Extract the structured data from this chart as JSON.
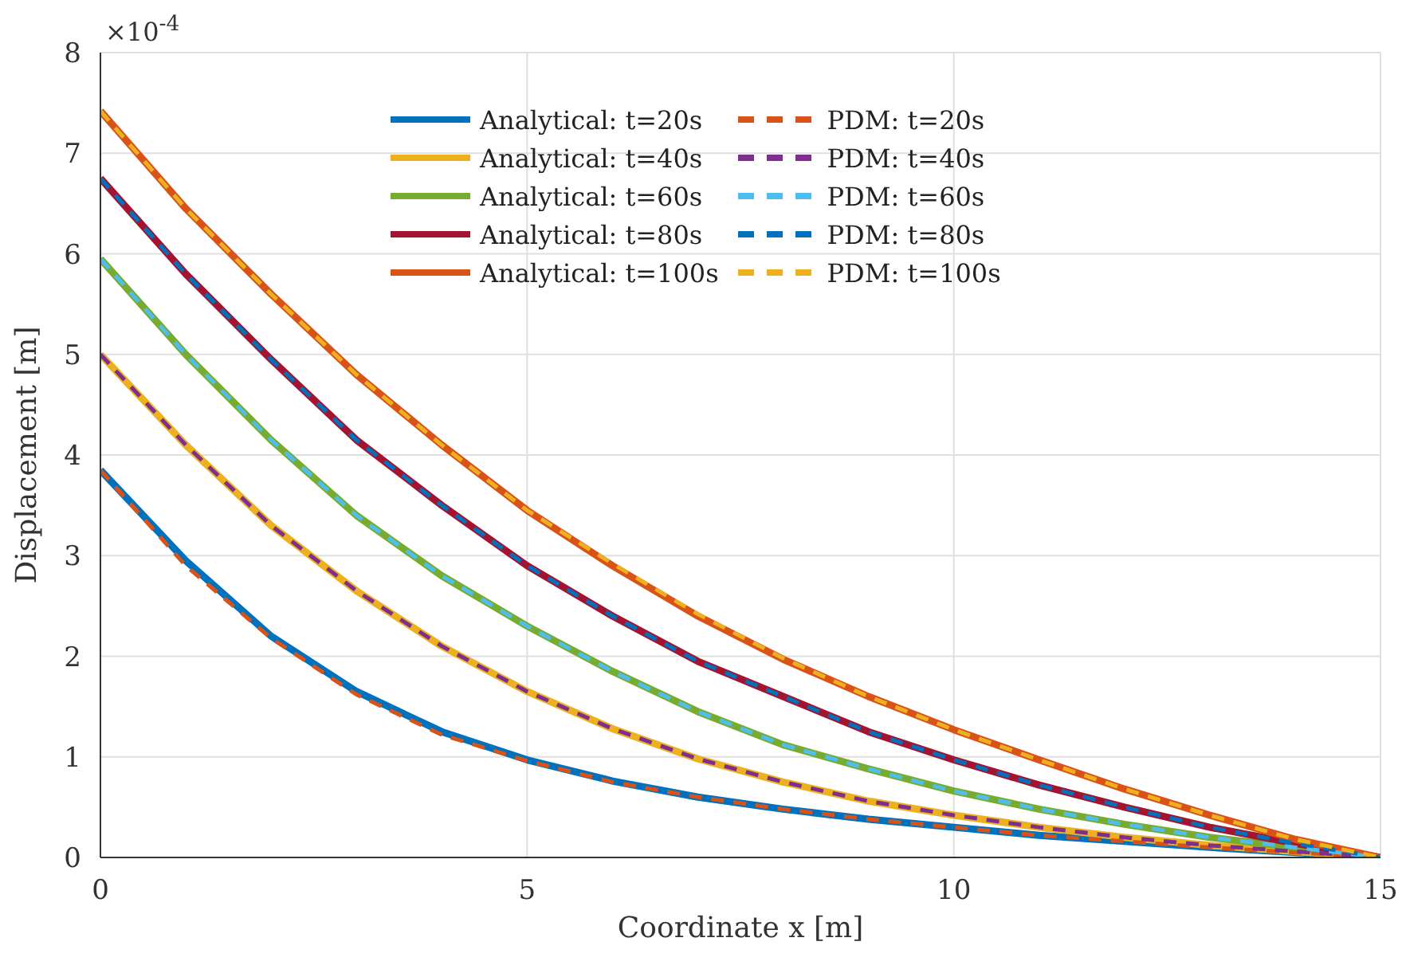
{
  "chart_data": {
    "type": "line",
    "xlabel": "Coordinate x [m]",
    "ylabel": "Displacement [m]",
    "annotations": [
      "×10$^{-4}$"
    ],
    "x": [
      0,
      1,
      2,
      3,
      4,
      5,
      6,
      7,
      8,
      9,
      10,
      11,
      12,
      13,
      14,
      15
    ],
    "xlim": [
      0,
      15
    ],
    "xticks": [
      0,
      5,
      10,
      15
    ],
    "ylim": [
      0,
      8
    ],
    "yticks": [
      0,
      1,
      2,
      3,
      4,
      5,
      6,
      7,
      8
    ],
    "grid": true,
    "legend": "top",
    "marker": "none",
    "series": [
      {
        "name": "Analytical: t=20s",
        "color": "#0072bd",
        "line_style": "solid",
        "values": [
          3.85,
          2.95,
          2.2,
          1.65,
          1.25,
          0.97,
          0.76,
          0.6,
          0.48,
          0.38,
          0.3,
          0.22,
          0.16,
          0.1,
          0.05,
          0
        ]
      },
      {
        "name": "Analytical: t=40s",
        "color": "#edb120",
        "line_style": "solid",
        "values": [
          5.0,
          4.1,
          3.3,
          2.65,
          2.1,
          1.65,
          1.28,
          0.98,
          0.75,
          0.56,
          0.42,
          0.3,
          0.2,
          0.12,
          0.06,
          0
        ]
      },
      {
        "name": "Analytical: t=60s",
        "color": "#77ac30",
        "line_style": "solid",
        "values": [
          5.95,
          5.0,
          4.15,
          3.4,
          2.8,
          2.3,
          1.85,
          1.45,
          1.12,
          0.88,
          0.66,
          0.48,
          0.33,
          0.2,
          0.1,
          0
        ]
      },
      {
        "name": "Analytical: t=80s",
        "color": "#a2142f",
        "line_style": "solid",
        "values": [
          6.75,
          5.8,
          4.95,
          4.15,
          3.5,
          2.9,
          2.4,
          1.95,
          1.6,
          1.25,
          0.97,
          0.72,
          0.5,
          0.3,
          0.14,
          0
        ]
      },
      {
        "name": "Analytical: t=100s",
        "color": "#d95319",
        "line_style": "solid",
        "values": [
          7.42,
          6.45,
          5.6,
          4.8,
          4.1,
          3.45,
          2.9,
          2.4,
          1.97,
          1.6,
          1.27,
          0.97,
          0.68,
          0.42,
          0.18,
          0
        ]
      },
      {
        "name": "PDM: t=20s",
        "color": "#d95319",
        "line_style": "dashed",
        "values": [
          3.85,
          2.9,
          2.18,
          1.62,
          1.22,
          0.96,
          0.75,
          0.6,
          0.48,
          0.38,
          0.3,
          0.22,
          0.16,
          0.1,
          0.05,
          0
        ]
      },
      {
        "name": "PDM: t=40s",
        "color": "#7e2f8e",
        "line_style": "dashed",
        "values": [
          5.0,
          4.1,
          3.3,
          2.65,
          2.1,
          1.65,
          1.28,
          0.98,
          0.75,
          0.56,
          0.42,
          0.3,
          0.2,
          0.12,
          0.06,
          0
        ]
      },
      {
        "name": "PDM: t=60s",
        "color": "#4dbeee",
        "line_style": "dashed",
        "values": [
          5.95,
          5.0,
          4.15,
          3.4,
          2.8,
          2.3,
          1.85,
          1.45,
          1.12,
          0.88,
          0.66,
          0.48,
          0.33,
          0.2,
          0.1,
          0
        ]
      },
      {
        "name": "PDM: t=80s",
        "color": "#0072bd",
        "line_style": "dashed",
        "values": [
          6.75,
          5.8,
          4.95,
          4.15,
          3.5,
          2.9,
          2.4,
          1.95,
          1.6,
          1.25,
          0.97,
          0.72,
          0.5,
          0.3,
          0.14,
          0
        ]
      },
      {
        "name": "PDM: t=100s",
        "color": "#edb120",
        "line_style": "dashed",
        "values": [
          7.42,
          6.45,
          5.6,
          4.8,
          4.1,
          3.45,
          2.92,
          2.42,
          1.98,
          1.6,
          1.27,
          0.97,
          0.68,
          0.42,
          0.18,
          0
        ]
      }
    ]
  }
}
